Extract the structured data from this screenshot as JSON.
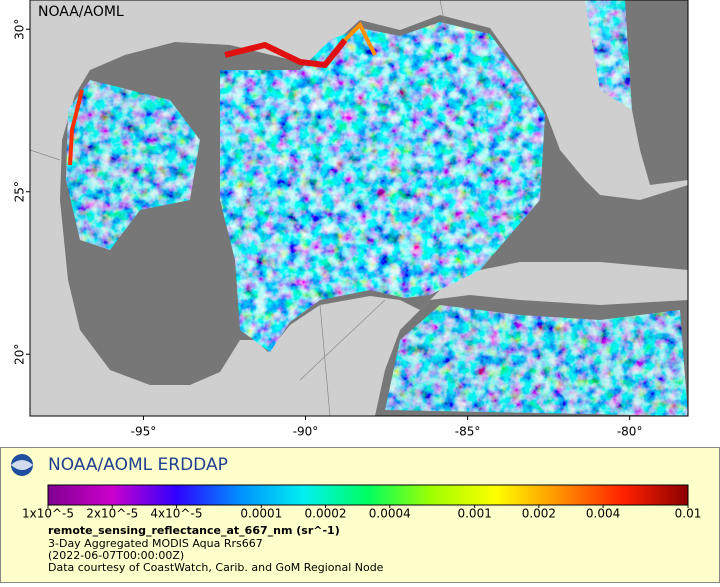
{
  "map": {
    "watermark": "NOAA/AOML",
    "lon_range": [
      -98.5,
      -78.2
    ],
    "lat_range": [
      18.1,
      30.9
    ],
    "lat_ticks": [
      {
        "value": 30,
        "label": "30°"
      },
      {
        "value": 25,
        "label": "25°"
      },
      {
        "value": 20,
        "label": "20°"
      }
    ],
    "lon_ticks": [
      {
        "value": -95,
        "label": "-95°"
      },
      {
        "value": -90,
        "label": "-90°"
      },
      {
        "value": -85,
        "label": "-85°"
      },
      {
        "value": -80,
        "label": "-80°"
      }
    ]
  },
  "legend": {
    "title": "NOAA/AOML ERDDAP",
    "colorbar": {
      "scale": "log",
      "range": [
        1e-05,
        0.01
      ],
      "colors": [
        "#7f0090",
        "#cc00cc",
        "#3000ff",
        "#0090ff",
        "#00f0f0",
        "#00ff60",
        "#a0ff00",
        "#ffff00",
        "#ff9000",
        "#ff2000",
        "#8b0000"
      ],
      "ticks": [
        {
          "value": 1e-05,
          "label": "1x10^-5"
        },
        {
          "value": 2e-05,
          "label": "2x10^-5"
        },
        {
          "value": 4e-05,
          "label": "4x10^-5"
        },
        {
          "value": 0.0001,
          "label": "0.0001"
        },
        {
          "value": 0.0002,
          "label": "0.0002"
        },
        {
          "value": 0.0004,
          "label": "0.0004"
        },
        {
          "value": 0.001,
          "label": "0.001"
        },
        {
          "value": 0.002,
          "label": "0.002"
        },
        {
          "value": 0.004,
          "label": "0.004"
        },
        {
          "value": 0.01,
          "label": "0.01"
        }
      ]
    },
    "variable": "remote_sensing_reflectance_at_667_nm (sr^-1)",
    "lines": [
      "3-Day Aggregated MODIS Aqua Rrs667",
      "(2022-06-07T00:00:00Z)",
      "Data courtesy of CoastWatch, Carib. and GoM Regional Node"
    ]
  }
}
